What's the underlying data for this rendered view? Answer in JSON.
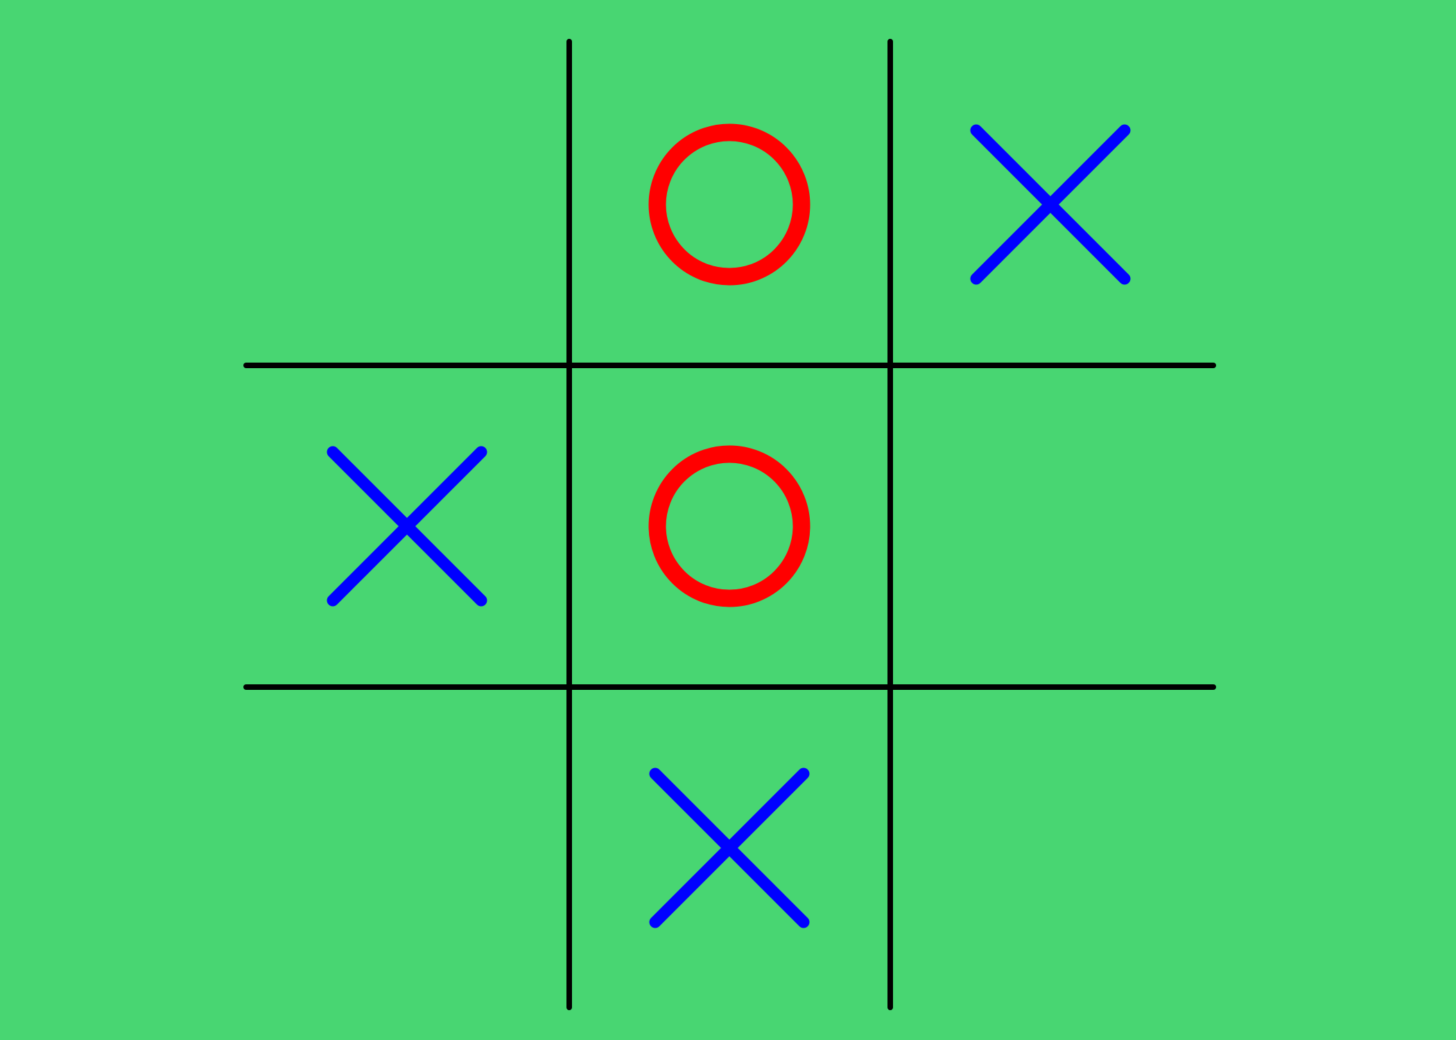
{
  "colors": {
    "background": "#48d672",
    "grid": "#000000",
    "x_mark": "#0000ff",
    "o_mark": "#ff0000"
  },
  "board": {
    "rows": 3,
    "cols": 3,
    "cells": [
      [
        "",
        "O",
        "X"
      ],
      [
        "X",
        "O",
        ""
      ],
      [
        "",
        "X",
        ""
      ]
    ]
  }
}
